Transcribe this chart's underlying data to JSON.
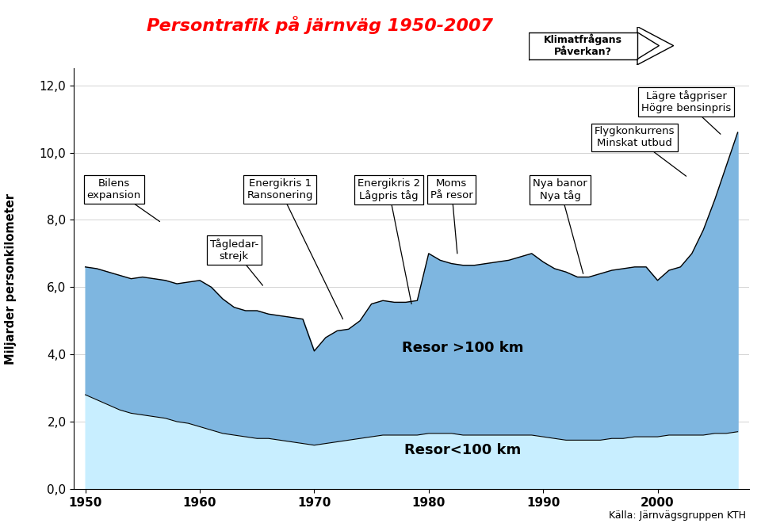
{
  "title": "Persontrafik på järnväg 1950-2007",
  "ylabel": "Miljarder personkilometer",
  "source": "Källa: Järnvägsgruppen KTH",
  "xlim": [
    1949,
    2008
  ],
  "ylim": [
    0,
    12.5
  ],
  "yticks": [
    0.0,
    2.0,
    4.0,
    6.0,
    8.0,
    10.0,
    12.0
  ],
  "xticks": [
    1950,
    1960,
    1970,
    1980,
    1990,
    2000
  ],
  "years": [
    1950,
    1951,
    1952,
    1953,
    1954,
    1955,
    1956,
    1957,
    1958,
    1959,
    1960,
    1961,
    1962,
    1963,
    1964,
    1965,
    1966,
    1967,
    1968,
    1969,
    1970,
    1971,
    1972,
    1973,
    1974,
    1975,
    1976,
    1977,
    1978,
    1979,
    1980,
    1981,
    1982,
    1983,
    1984,
    1985,
    1986,
    1987,
    1988,
    1989,
    1990,
    1991,
    1992,
    1993,
    1994,
    1995,
    1996,
    1997,
    1998,
    1999,
    2000,
    2001,
    2002,
    2003,
    2004,
    2005,
    2006,
    2007
  ],
  "total": [
    6.6,
    6.55,
    6.45,
    6.35,
    6.25,
    6.3,
    6.25,
    6.2,
    6.1,
    6.15,
    6.2,
    6.0,
    5.65,
    5.4,
    5.3,
    5.3,
    5.2,
    5.15,
    5.1,
    5.05,
    4.1,
    4.5,
    4.7,
    4.75,
    5.0,
    5.5,
    5.6,
    5.55,
    5.55,
    5.6,
    7.0,
    6.8,
    6.7,
    6.65,
    6.65,
    6.7,
    6.75,
    6.8,
    6.9,
    7.0,
    6.75,
    6.55,
    6.45,
    6.3,
    6.3,
    6.4,
    6.5,
    6.55,
    6.6,
    6.6,
    6.2,
    6.5,
    6.6,
    7.0,
    7.7,
    8.6,
    9.6,
    10.6
  ],
  "short": [
    2.8,
    2.65,
    2.5,
    2.35,
    2.25,
    2.2,
    2.15,
    2.1,
    2.0,
    1.95,
    1.85,
    1.75,
    1.65,
    1.6,
    1.55,
    1.5,
    1.5,
    1.45,
    1.4,
    1.35,
    1.3,
    1.35,
    1.4,
    1.45,
    1.5,
    1.55,
    1.6,
    1.6,
    1.6,
    1.6,
    1.65,
    1.65,
    1.65,
    1.6,
    1.6,
    1.6,
    1.6,
    1.6,
    1.6,
    1.6,
    1.55,
    1.5,
    1.45,
    1.45,
    1.45,
    1.45,
    1.5,
    1.5,
    1.55,
    1.55,
    1.55,
    1.6,
    1.6,
    1.6,
    1.6,
    1.65,
    1.65,
    1.7
  ],
  "title_color": "#FF0000",
  "area_total_color": "#7EB6E0",
  "area_short_color": "#C8EEFF",
  "line_color": "#000000",
  "arrow_label": "Klimatfrågans\nPåverkan?"
}
